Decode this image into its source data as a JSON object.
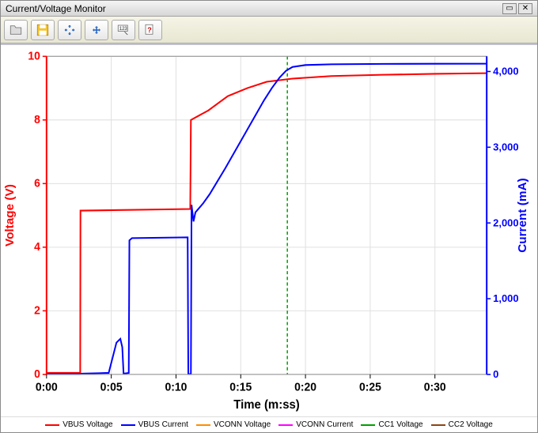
{
  "window": {
    "title": "Current/Voltage Monitor"
  },
  "toolbar": {
    "buttons": [
      "open",
      "save",
      "zoom-out",
      "zoom-in",
      "cursor-readout",
      "help"
    ]
  },
  "chart": {
    "type": "line",
    "background_color": "#ffffff",
    "plot_border_color": "#999999",
    "grid_color": "#e0e0e0",
    "x": {
      "label": "Time (m:ss)",
      "label_color": "#000000",
      "ticks": [
        "0:00",
        "0:05",
        "0:10",
        "0:15",
        "0:20",
        "0:25",
        "0:30"
      ],
      "tick_positions": [
        0,
        5,
        10,
        15,
        20,
        25,
        30
      ],
      "range": [
        0,
        34
      ]
    },
    "y_left": {
      "label": "Voltage (V)",
      "label_color": "#ff0000",
      "axis_color": "#ff0000",
      "range": [
        0,
        10
      ],
      "ticks": [
        0,
        2,
        4,
        6,
        8,
        10
      ]
    },
    "y_right": {
      "label": "Current (mA)",
      "label_color": "#0000ff",
      "axis_color": "#0000ff",
      "range": [
        0,
        4200
      ],
      "ticks": [
        0,
        1000,
        2000,
        3000,
        4000
      ],
      "tick_labels": [
        "0",
        "1,000",
        "2,000",
        "3,000",
        "4,000"
      ]
    },
    "marker": {
      "x": 18.6,
      "color": "#00a000",
      "dash": "4,3"
    },
    "series": [
      {
        "id": "vbus_voltage",
        "name": "VBUS Voltage",
        "axis": "left",
        "color": "#ff0000",
        "width": 2,
        "points": [
          [
            0,
            0.05
          ],
          [
            2.6,
            0.05
          ],
          [
            2.62,
            5.15
          ],
          [
            11.1,
            5.2
          ],
          [
            11.15,
            8.0
          ],
          [
            12.5,
            8.3
          ],
          [
            14,
            8.75
          ],
          [
            15.5,
            9.0
          ],
          [
            17,
            9.2
          ],
          [
            19,
            9.3
          ],
          [
            22,
            9.38
          ],
          [
            26,
            9.42
          ],
          [
            30,
            9.45
          ],
          [
            34,
            9.47
          ]
        ]
      },
      {
        "id": "vbus_current",
        "name": "VBUS Current",
        "axis": "right",
        "color": "#0000ff",
        "width": 2,
        "points": [
          [
            0,
            5
          ],
          [
            2.6,
            5
          ],
          [
            2.7,
            10
          ],
          [
            4.8,
            20
          ],
          [
            5.4,
            420
          ],
          [
            5.7,
            470
          ],
          [
            5.85,
            360
          ],
          [
            5.95,
            10
          ],
          [
            6.35,
            20
          ],
          [
            6.4,
            1770
          ],
          [
            6.6,
            1800
          ],
          [
            10.9,
            1810
          ],
          [
            10.95,
            5
          ],
          [
            11.15,
            5
          ],
          [
            11.2,
            2240
          ],
          [
            11.35,
            2020
          ],
          [
            11.5,
            2140
          ],
          [
            11.7,
            2180
          ],
          [
            12.1,
            2260
          ],
          [
            12.6,
            2380
          ],
          [
            13.2,
            2550
          ],
          [
            13.8,
            2720
          ],
          [
            14.4,
            2900
          ],
          [
            15.0,
            3080
          ],
          [
            15.6,
            3260
          ],
          [
            16.2,
            3440
          ],
          [
            16.8,
            3620
          ],
          [
            17.4,
            3780
          ],
          [
            18.0,
            3920
          ],
          [
            18.5,
            4010
          ],
          [
            19.0,
            4060
          ],
          [
            20.0,
            4085
          ],
          [
            22.0,
            4095
          ],
          [
            26.0,
            4100
          ],
          [
            30.0,
            4102
          ],
          [
            34.0,
            4103
          ]
        ]
      }
    ],
    "legend": [
      {
        "label": "VBUS Voltage",
        "color": "#ff0000"
      },
      {
        "label": "VBUS Current",
        "color": "#0000ff"
      },
      {
        "label": "VCONN Voltage",
        "color": "#ff8c00"
      },
      {
        "label": "VCONN Current",
        "color": "#ff00ff"
      },
      {
        "label": "CC1 Voltage",
        "color": "#00a000"
      },
      {
        "label": "CC2 Voltage",
        "color": "#8b4513"
      }
    ]
  }
}
